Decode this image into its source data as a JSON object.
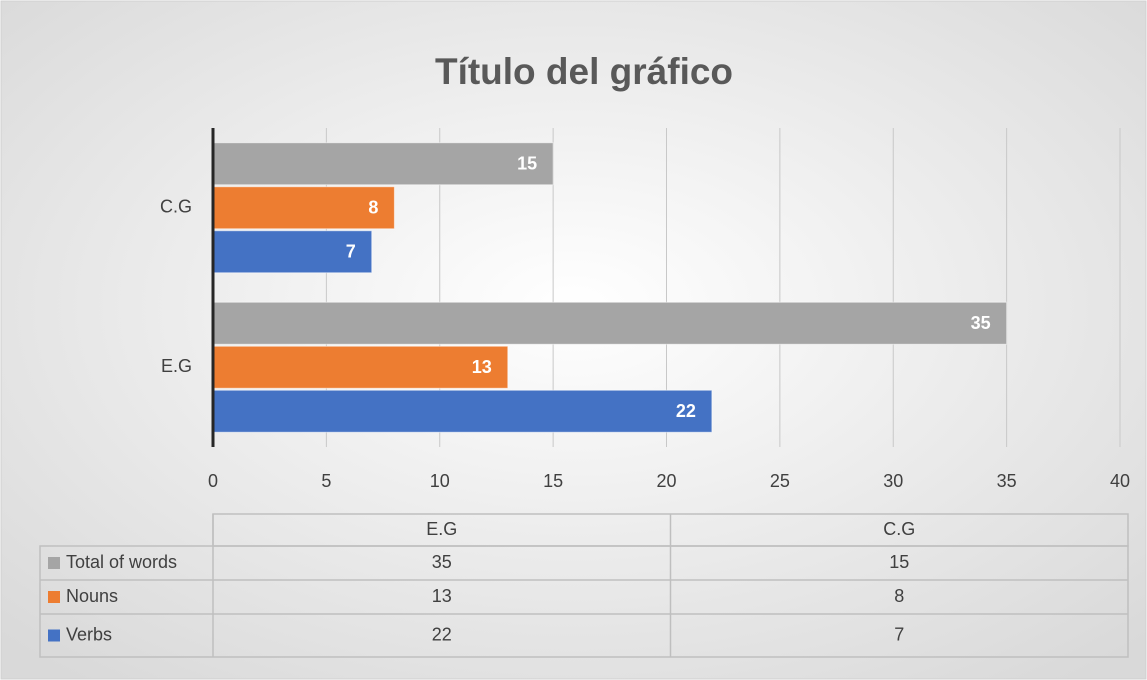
{
  "chart_data": {
    "type": "bar",
    "orientation": "horizontal",
    "title": "Título del gráfico",
    "categories": [
      "E.G",
      "C.G"
    ],
    "series": [
      {
        "name": "Total of words",
        "color": "#a5a5a5",
        "values": [
          35,
          15
        ]
      },
      {
        "name": "Nouns",
        "color": "#ed7d31",
        "values": [
          13,
          8
        ]
      },
      {
        "name": "Verbs",
        "color": "#4472c4",
        "values": [
          22,
          7
        ]
      }
    ],
    "xlim": [
      0,
      40
    ],
    "xticks": [
      0,
      5,
      10,
      15,
      20,
      25,
      30,
      35,
      40
    ],
    "grid": true,
    "data_table": true
  }
}
